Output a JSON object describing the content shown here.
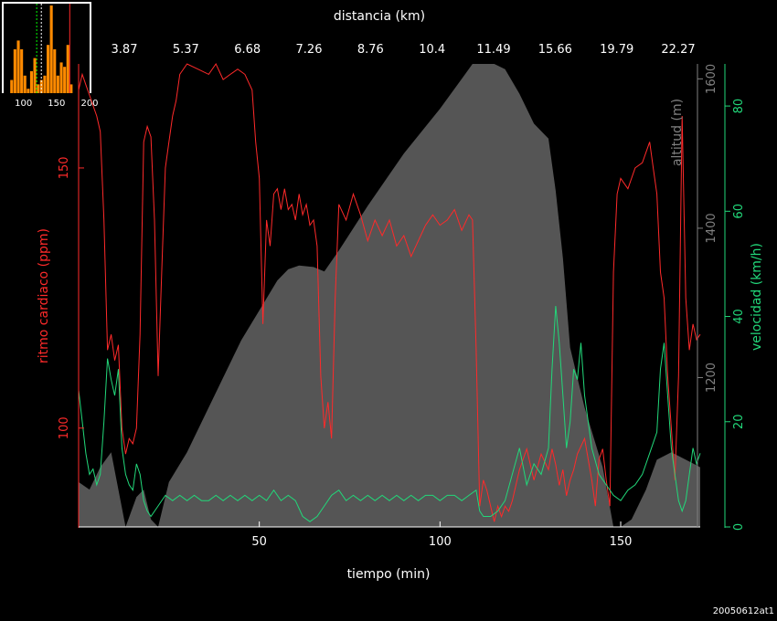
{
  "chart_data": {
    "type": "line",
    "top_axis": {
      "label": "distancia (km)",
      "ticks": [
        "3.87",
        "5.37",
        "6.68",
        "7.26",
        "8.76",
        "10.4",
        "11.49",
        "15.66",
        "19.79",
        "22.27"
      ]
    },
    "x_axis": {
      "label": "tiempo (min)",
      "range": [
        0,
        172
      ],
      "ticks": [
        50,
        100,
        150
      ]
    },
    "left_axis": {
      "label": "ritmo cardiaco (ppm)",
      "range": [
        81,
        170
      ],
      "ticks": [
        100,
        150
      ],
      "color": "#ff2a2a"
    },
    "right_axis_altitude": {
      "label": "altitud (m)",
      "range": [
        1000,
        1620
      ],
      "ticks": [
        1200,
        1400,
        1600
      ],
      "color": "#808080"
    },
    "right_axis_speed": {
      "label": "velocidad (km/h)",
      "range": [
        0,
        88
      ],
      "ticks": [
        0,
        20,
        40,
        60,
        80
      ],
      "color": "#22d87a"
    },
    "series": [
      {
        "name": "altitud",
        "axis": "altitude",
        "color": "#555555",
        "points": [
          [
            0,
            1060
          ],
          [
            3,
            1050
          ],
          [
            6,
            1080
          ],
          [
            9,
            1100
          ],
          [
            11,
            1050
          ],
          [
            13,
            1000
          ],
          [
            16,
            1040
          ],
          [
            18,
            1050
          ],
          [
            20,
            1010
          ],
          [
            22,
            1000
          ],
          [
            25,
            1060
          ],
          [
            30,
            1100
          ],
          [
            35,
            1150
          ],
          [
            40,
            1200
          ],
          [
            45,
            1250
          ],
          [
            50,
            1290
          ],
          [
            55,
            1330
          ],
          [
            58,
            1345
          ],
          [
            61,
            1350
          ],
          [
            65,
            1348
          ],
          [
            68,
            1342
          ],
          [
            72,
            1370
          ],
          [
            80,
            1430
          ],
          [
            90,
            1500
          ],
          [
            100,
            1560
          ],
          [
            106,
            1600
          ],
          [
            109,
            1620
          ],
          [
            115,
            1620
          ],
          [
            118,
            1613
          ],
          [
            122,
            1580
          ],
          [
            126,
            1540
          ],
          [
            130,
            1520
          ],
          [
            132,
            1450
          ],
          [
            134,
            1360
          ],
          [
            136,
            1240
          ],
          [
            140,
            1160
          ],
          [
            145,
            1080
          ],
          [
            148,
            1000
          ],
          [
            150,
            1000
          ],
          [
            153,
            1010
          ],
          [
            157,
            1050
          ],
          [
            160,
            1090
          ],
          [
            164,
            1100
          ],
          [
            168,
            1090
          ],
          [
            172,
            1080
          ]
        ]
      },
      {
        "name": "ritmo cardiaco",
        "axis": "hr",
        "color": "#ff2a2a",
        "points": [
          [
            0,
            165
          ],
          [
            1,
            168
          ],
          [
            2,
            166
          ],
          [
            3,
            164
          ],
          [
            4,
            162
          ],
          [
            5,
            160
          ],
          [
            6,
            157
          ],
          [
            7,
            140
          ],
          [
            8,
            115
          ],
          [
            9,
            118
          ],
          [
            10,
            113
          ],
          [
            11,
            116
          ],
          [
            12,
            100
          ],
          [
            13,
            95
          ],
          [
            14,
            98
          ],
          [
            15,
            97
          ],
          [
            16,
            100
          ],
          [
            17,
            118
          ],
          [
            18,
            155
          ],
          [
            19,
            158
          ],
          [
            20,
            156
          ],
          [
            21,
            140
          ],
          [
            22,
            110
          ],
          [
            23,
            130
          ],
          [
            24,
            150
          ],
          [
            25,
            155
          ],
          [
            26,
            160
          ],
          [
            27,
            163
          ],
          [
            28,
            168
          ],
          [
            30,
            170
          ],
          [
            33,
            169
          ],
          [
            36,
            168
          ],
          [
            38,
            170
          ],
          [
            40,
            167
          ],
          [
            42,
            168
          ],
          [
            44,
            169
          ],
          [
            46,
            168
          ],
          [
            48,
            165
          ],
          [
            49,
            155
          ],
          [
            50,
            148
          ],
          [
            51,
            120
          ],
          [
            52,
            140
          ],
          [
            53,
            135
          ],
          [
            54,
            145
          ],
          [
            55,
            146
          ],
          [
            56,
            142
          ],
          [
            57,
            146
          ],
          [
            58,
            142
          ],
          [
            59,
            143
          ],
          [
            60,
            140
          ],
          [
            61,
            145
          ],
          [
            62,
            141
          ],
          [
            63,
            143
          ],
          [
            64,
            139
          ],
          [
            65,
            140
          ],
          [
            66,
            135
          ],
          [
            67,
            110
          ],
          [
            68,
            100
          ],
          [
            69,
            105
          ],
          [
            70,
            98
          ],
          [
            71,
            125
          ],
          [
            72,
            143
          ],
          [
            74,
            140
          ],
          [
            76,
            145
          ],
          [
            78,
            141
          ],
          [
            80,
            136
          ],
          [
            82,
            140
          ],
          [
            84,
            137
          ],
          [
            86,
            140
          ],
          [
            88,
            135
          ],
          [
            90,
            137
          ],
          [
            92,
            133
          ],
          [
            94,
            136
          ],
          [
            96,
            139
          ],
          [
            98,
            141
          ],
          [
            100,
            139
          ],
          [
            102,
            140
          ],
          [
            104,
            142
          ],
          [
            106,
            138
          ],
          [
            108,
            141
          ],
          [
            109,
            140
          ],
          [
            110,
            115
          ],
          [
            111,
            85
          ],
          [
            112,
            90
          ],
          [
            113,
            88
          ],
          [
            114,
            85
          ],
          [
            115,
            82
          ],
          [
            116,
            85
          ],
          [
            117,
            83
          ],
          [
            118,
            85
          ],
          [
            119,
            84
          ],
          [
            120,
            86
          ],
          [
            122,
            92
          ],
          [
            124,
            96
          ],
          [
            126,
            90
          ],
          [
            128,
            95
          ],
          [
            130,
            92
          ],
          [
            131,
            96
          ],
          [
            132,
            93
          ],
          [
            133,
            89
          ],
          [
            134,
            92
          ],
          [
            135,
            87
          ],
          [
            136,
            90
          ],
          [
            137,
            92
          ],
          [
            138,
            95
          ],
          [
            140,
            98
          ],
          [
            142,
            90
          ],
          [
            143,
            85
          ],
          [
            144,
            94
          ],
          [
            145,
            96
          ],
          [
            146,
            90
          ],
          [
            147,
            85
          ],
          [
            148,
            130
          ],
          [
            149,
            145
          ],
          [
            150,
            148
          ],
          [
            152,
            146
          ],
          [
            154,
            150
          ],
          [
            156,
            151
          ],
          [
            158,
            155
          ],
          [
            159,
            150
          ],
          [
            160,
            145
          ],
          [
            161,
            130
          ],
          [
            162,
            125
          ],
          [
            163,
            110
          ],
          [
            164,
            100
          ],
          [
            165,
            90
          ],
          [
            166,
            110
          ],
          [
            167,
            160
          ],
          [
            168,
            125
          ],
          [
            169,
            115
          ],
          [
            170,
            120
          ],
          [
            171,
            117
          ],
          [
            172,
            118
          ]
        ]
      },
      {
        "name": "velocidad",
        "axis": "speed",
        "color": "#22d87a",
        "points": [
          [
            0,
            26
          ],
          [
            1,
            20
          ],
          [
            2,
            14
          ],
          [
            3,
            10
          ],
          [
            4,
            11
          ],
          [
            5,
            8
          ],
          [
            6,
            10
          ],
          [
            7,
            20
          ],
          [
            8,
            32
          ],
          [
            9,
            28
          ],
          [
            10,
            25
          ],
          [
            11,
            30
          ],
          [
            12,
            15
          ],
          [
            13,
            10
          ],
          [
            14,
            8
          ],
          [
            15,
            7
          ],
          [
            16,
            12
          ],
          [
            17,
            10
          ],
          [
            18,
            5
          ],
          [
            19,
            3
          ],
          [
            20,
            2
          ],
          [
            22,
            4
          ],
          [
            24,
            6
          ],
          [
            26,
            5
          ],
          [
            28,
            6
          ],
          [
            30,
            5
          ],
          [
            32,
            6
          ],
          [
            34,
            5
          ],
          [
            36,
            5
          ],
          [
            38,
            6
          ],
          [
            40,
            5
          ],
          [
            42,
            6
          ],
          [
            44,
            5
          ],
          [
            46,
            6
          ],
          [
            48,
            5
          ],
          [
            50,
            6
          ],
          [
            52,
            5
          ],
          [
            54,
            7
          ],
          [
            56,
            5
          ],
          [
            58,
            6
          ],
          [
            60,
            5
          ],
          [
            62,
            2
          ],
          [
            64,
            1
          ],
          [
            66,
            2
          ],
          [
            68,
            4
          ],
          [
            70,
            6
          ],
          [
            72,
            7
          ],
          [
            74,
            5
          ],
          [
            76,
            6
          ],
          [
            78,
            5
          ],
          [
            80,
            6
          ],
          [
            82,
            5
          ],
          [
            84,
            6
          ],
          [
            86,
            5
          ],
          [
            88,
            6
          ],
          [
            90,
            5
          ],
          [
            92,
            6
          ],
          [
            94,
            5
          ],
          [
            96,
            6
          ],
          [
            98,
            6
          ],
          [
            100,
            5
          ],
          [
            102,
            6
          ],
          [
            104,
            6
          ],
          [
            106,
            5
          ],
          [
            108,
            6
          ],
          [
            110,
            7
          ],
          [
            111,
            3
          ],
          [
            112,
            2
          ],
          [
            114,
            2
          ],
          [
            116,
            3
          ],
          [
            118,
            5
          ],
          [
            120,
            10
          ],
          [
            122,
            15
          ],
          [
            124,
            8
          ],
          [
            126,
            12
          ],
          [
            128,
            10
          ],
          [
            130,
            15
          ],
          [
            131,
            30
          ],
          [
            132,
            42
          ],
          [
            133,
            35
          ],
          [
            134,
            25
          ],
          [
            135,
            15
          ],
          [
            136,
            20
          ],
          [
            137,
            30
          ],
          [
            138,
            28
          ],
          [
            139,
            35
          ],
          [
            140,
            25
          ],
          [
            142,
            15
          ],
          [
            144,
            10
          ],
          [
            146,
            8
          ],
          [
            148,
            6
          ],
          [
            150,
            5
          ],
          [
            152,
            7
          ],
          [
            154,
            8
          ],
          [
            156,
            10
          ],
          [
            158,
            14
          ],
          [
            160,
            18
          ],
          [
            161,
            30
          ],
          [
            162,
            35
          ],
          [
            163,
            25
          ],
          [
            164,
            15
          ],
          [
            165,
            10
          ],
          [
            166,
            5
          ],
          [
            167,
            3
          ],
          [
            168,
            5
          ],
          [
            169,
            10
          ],
          [
            170,
            15
          ],
          [
            171,
            12
          ],
          [
            172,
            14
          ]
        ]
      }
    ],
    "histogram": {
      "x_ticks": [
        100,
        150,
        200
      ],
      "color": "#ff8a00",
      "markers": [
        {
          "x": 120,
          "color": "#00ff00"
        },
        {
          "x": 127,
          "color": "#ffffff"
        },
        {
          "x": 170,
          "color": "#ff2a2a"
        }
      ]
    },
    "footer": "20050612at1"
  }
}
